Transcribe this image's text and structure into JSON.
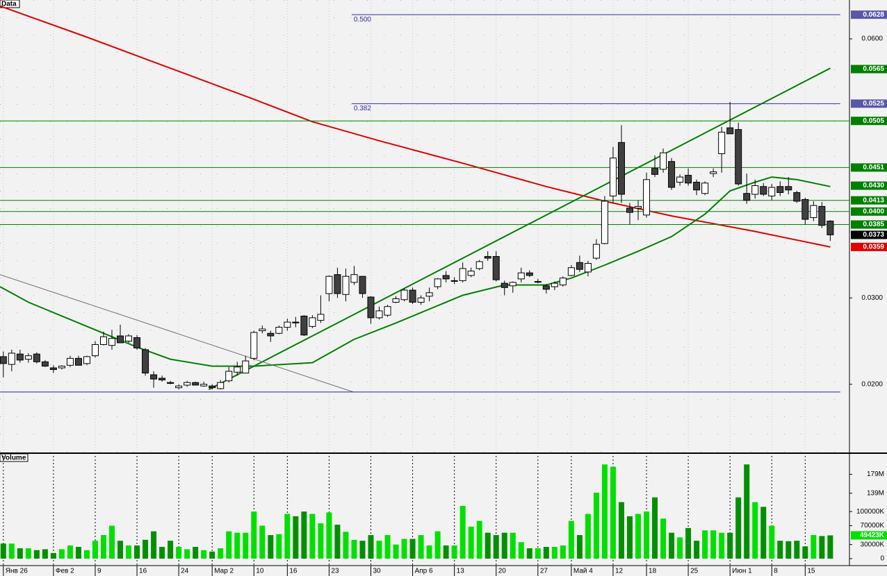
{
  "chart_data": {
    "type": "candlestick",
    "title": "Data",
    "categories": [
      "Янв 26",
      null,
      null,
      null,
      null,
      null,
      "Фев 2",
      null,
      null,
      null,
      null,
      "9",
      null,
      null,
      null,
      null,
      "16",
      null,
      null,
      null,
      null,
      "24",
      null,
      null,
      null,
      "Мар 2",
      null,
      null,
      null,
      null,
      "10",
      null,
      null,
      null,
      "16",
      null,
      null,
      null,
      null,
      "23",
      null,
      null,
      null,
      null,
      "30",
      null,
      null,
      null,
      null,
      "Апр 6",
      null,
      null,
      null,
      null,
      "13",
      null,
      null,
      null,
      null,
      "20",
      null,
      null,
      null,
      null,
      "27",
      null,
      null,
      null,
      "Май 4",
      null,
      null,
      null,
      null,
      "12",
      null,
      null,
      null,
      "18",
      null,
      null,
      null,
      null,
      "25",
      null,
      null,
      null,
      null,
      "Июн 1",
      null,
      null,
      null,
      null,
      "8",
      null,
      null,
      null,
      "15",
      null,
      null,
      null
    ],
    "ohlc": [
      [
        0.0232,
        0.0238,
        0.0208,
        0.0224
      ],
      [
        0.0223,
        0.024,
        0.0215,
        0.0236
      ],
      [
        0.0235,
        0.024,
        0.0225,
        0.0228
      ],
      [
        0.0229,
        0.0236,
        0.0225,
        0.0233
      ],
      [
        0.0235,
        0.0237,
        0.0224,
        0.0226
      ],
      [
        0.0226,
        0.0228,
        0.022,
        0.0221
      ],
      [
        0.0219,
        0.0222,
        0.0213,
        0.0217
      ],
      [
        0.0219,
        0.0222,
        0.0217,
        0.0221
      ],
      [
        0.0222,
        0.0233,
        0.022,
        0.023
      ],
      [
        0.023,
        0.0233,
        0.0222,
        0.0222
      ],
      [
        0.0224,
        0.0233,
        0.0222,
        0.0232
      ],
      [
        0.0233,
        0.025,
        0.0231,
        0.0246
      ],
      [
        0.0246,
        0.0261,
        0.0245,
        0.0255
      ],
      [
        0.0245,
        0.0263,
        0.024,
        0.0253
      ],
      [
        0.0256,
        0.0269,
        0.0248,
        0.0248
      ],
      [
        0.025,
        0.0258,
        0.0248,
        0.0256
      ],
      [
        0.0254,
        0.0257,
        0.024,
        0.0242
      ],
      [
        0.024,
        0.0242,
        0.021,
        0.0213
      ],
      [
        0.0211,
        0.0215,
        0.0196,
        0.0206
      ],
      [
        0.0207,
        0.021,
        0.0203,
        0.0205
      ],
      [
        0.0202,
        0.0204,
        0.02,
        0.0201
      ],
      [
        0.0196,
        0.02,
        0.0194,
        0.0198
      ],
      [
        0.0199,
        0.0204,
        0.0197,
        0.0202
      ],
      [
        0.0202,
        0.0203,
        0.0199,
        0.0199
      ],
      [
        0.0198,
        0.0203,
        0.0197,
        0.02
      ],
      [
        0.0198,
        0.02,
        0.0194,
        0.0196
      ],
      [
        0.0195,
        0.0205,
        0.0194,
        0.0202
      ],
      [
        0.0204,
        0.022,
        0.0202,
        0.0215
      ],
      [
        0.0214,
        0.0226,
        0.021,
        0.022
      ],
      [
        0.0213,
        0.0233,
        0.0213,
        0.0227
      ],
      [
        0.023,
        0.0262,
        0.0228,
        0.026
      ],
      [
        0.0262,
        0.0268,
        0.0259,
        0.0264
      ],
      [
        0.0259,
        0.0262,
        0.0249,
        0.0256
      ],
      [
        0.0259,
        0.0268,
        0.0258,
        0.0266
      ],
      [
        0.0266,
        0.0276,
        0.0262,
        0.0272
      ],
      [
        0.0272,
        0.0278,
        0.0266,
        0.0271
      ],
      [
        0.0279,
        0.028,
        0.0256,
        0.0257
      ],
      [
        0.0267,
        0.028,
        0.0265,
        0.0277
      ],
      [
        0.0274,
        0.0303,
        0.0271,
        0.0281
      ],
      [
        0.0305,
        0.0326,
        0.0296,
        0.0325
      ],
      [
        0.0327,
        0.0335,
        0.03,
        0.0305
      ],
      [
        0.0304,
        0.0334,
        0.0296,
        0.0325
      ],
      [
        0.0318,
        0.0337,
        0.0315,
        0.0327
      ],
      [
        0.0325,
        0.0325,
        0.03,
        0.0305
      ],
      [
        0.0301,
        0.0302,
        0.027,
        0.0277
      ],
      [
        0.0277,
        0.029,
        0.0275,
        0.0285
      ],
      [
        0.028,
        0.0292,
        0.0278,
        0.029
      ],
      [
        0.0295,
        0.0302,
        0.0294,
        0.0299
      ],
      [
        0.0298,
        0.0311,
        0.0296,
        0.0309
      ],
      [
        0.0309,
        0.0312,
        0.0293,
        0.0295
      ],
      [
        0.0295,
        0.0303,
        0.0292,
        0.03
      ],
      [
        0.0302,
        0.0312,
        0.0296,
        0.0306
      ],
      [
        0.0313,
        0.0323,
        0.031,
        0.0322
      ],
      [
        0.0326,
        0.0331,
        0.0318,
        0.0322
      ],
      [
        0.032,
        0.0324,
        0.0316,
        0.032
      ],
      [
        0.032,
        0.0341,
        0.0318,
        0.0334
      ],
      [
        0.0326,
        0.0335,
        0.0324,
        0.0331
      ],
      [
        0.0334,
        0.0344,
        0.0332,
        0.0342
      ],
      [
        0.0348,
        0.0354,
        0.0343,
        0.0346
      ],
      [
        0.0348,
        0.0354,
        0.0319,
        0.0321
      ],
      [
        0.0317,
        0.032,
        0.0303,
        0.0312
      ],
      [
        0.0314,
        0.0319,
        0.0306,
        0.0318
      ],
      [
        0.0322,
        0.0335,
        0.0318,
        0.0329
      ],
      [
        0.0329,
        0.0332,
        0.0324,
        0.0326
      ],
      [
        0.0319,
        0.0322,
        0.0317,
        0.0319
      ],
      [
        0.0314,
        0.0316,
        0.0305,
        0.031
      ],
      [
        0.0313,
        0.0319,
        0.0309,
        0.0317
      ],
      [
        0.0315,
        0.0325,
        0.0313,
        0.0323
      ],
      [
        0.0326,
        0.0338,
        0.0325,
        0.0335
      ],
      [
        0.0341,
        0.0349,
        0.033,
        0.0333
      ],
      [
        0.033,
        0.0343,
        0.0325,
        0.034
      ],
      [
        0.0346,
        0.0368,
        0.0344,
        0.0362
      ],
      [
        0.0363,
        0.0418,
        0.0362,
        0.0412
      ],
      [
        0.0418,
        0.0475,
        0.041,
        0.0462
      ],
      [
        0.048,
        0.05,
        0.041,
        0.042
      ],
      [
        0.0404,
        0.041,
        0.0385,
        0.0399
      ],
      [
        0.0404,
        0.0413,
        0.039,
        0.0406
      ],
      [
        0.0396,
        0.0445,
        0.0393,
        0.0437
      ],
      [
        0.045,
        0.0465,
        0.044,
        0.0443
      ],
      [
        0.0449,
        0.0473,
        0.0445,
        0.0468
      ],
      [
        0.0458,
        0.0462,
        0.0425,
        0.0428
      ],
      [
        0.0434,
        0.0443,
        0.043,
        0.044
      ],
      [
        0.0442,
        0.045,
        0.043,
        0.0433
      ],
      [
        0.0434,
        0.0437,
        0.0419,
        0.0425
      ],
      [
        0.0421,
        0.0435,
        0.0419,
        0.0433
      ],
      [
        0.0444,
        0.045,
        0.044,
        0.0446
      ],
      [
        0.0467,
        0.0498,
        0.0445,
        0.0492
      ],
      [
        0.0497,
        0.0527,
        0.049,
        0.049
      ],
      [
        0.0495,
        0.0503,
        0.043,
        0.0432
      ],
      [
        0.0421,
        0.0444,
        0.0409,
        0.0413
      ],
      [
        0.042,
        0.0437,
        0.0415,
        0.043
      ],
      [
        0.0429,
        0.0433,
        0.0418,
        0.042
      ],
      [
        0.0418,
        0.0432,
        0.0413,
        0.0428
      ],
      [
        0.0429,
        0.0435,
        0.0418,
        0.0422
      ],
      [
        0.0429,
        0.044,
        0.042,
        0.0425
      ],
      [
        0.0422,
        0.0424,
        0.041,
        0.0412
      ],
      [
        0.0414,
        0.0416,
        0.0385,
        0.0391
      ],
      [
        0.0393,
        0.0412,
        0.0389,
        0.0407
      ],
      [
        0.0406,
        0.0411,
        0.0381,
        0.0384
      ],
      [
        0.0389,
        0.039,
        0.0366,
        0.0373
      ]
    ],
    "up_color": "#ffffff",
    "down_color": "#404040",
    "xlim": [
      -0.4,
      101.3
    ],
    "ylim": [
      0.0121,
      0.0645
    ],
    "yticks": [
      {
        "value": 0.02,
        "label": "0.0200"
      },
      {
        "value": 0.03,
        "label": "0.0300"
      },
      {
        "value": 0.06,
        "label": "0.0600"
      }
    ],
    "lines": [
      {
        "color": "#e00000",
        "x": [
          -0.4,
          10,
          20,
          30,
          37,
          45,
          55,
          65,
          72,
          80,
          90,
          99
        ],
        "values": [
          0.0638,
          0.0602,
          0.0566,
          0.053,
          0.0504,
          0.0482,
          0.0456,
          0.0429,
          0.0412,
          0.0395,
          0.0377,
          0.0359
        ]
      },
      {
        "color": "#008000",
        "x": [
          -0.4,
          3,
          10,
          16,
          20,
          25,
          30,
          37,
          42,
          47,
          55,
          60,
          65,
          68,
          72,
          76,
          80,
          84,
          87,
          90,
          92,
          95,
          99
        ],
        "values": [
          0.0313,
          0.0295,
          0.0267,
          0.0243,
          0.0229,
          0.0221,
          0.0221,
          0.0225,
          0.0252,
          0.0271,
          0.0303,
          0.0315,
          0.0315,
          0.0323,
          0.0338,
          0.0354,
          0.0371,
          0.0397,
          0.0424,
          0.0434,
          0.044,
          0.0437,
          0.0429
        ]
      },
      {
        "color": "#008000",
        "x": [
          24.6,
          99
        ],
        "values": [
          0.0194,
          0.0566
        ]
      },
      {
        "color": "#707070",
        "x": [
          -0.4,
          41.9
        ],
        "values": [
          0.0327,
          0.0191
        ]
      },
      {
        "color": "#2020a0",
        "x": [
          -0.4,
          100.2
        ],
        "values": [
          0.0191,
          0.0191
        ]
      },
      {
        "color": "#008000",
        "x": [
          -0.4,
          101.3
        ],
        "values": [
          0.0505,
          0.0505
        ]
      },
      {
        "color": "#008000",
        "x": [
          -0.4,
          101.3
        ],
        "values": [
          0.0451,
          0.0451
        ]
      },
      {
        "color": "#008000",
        "x": [
          -0.4,
          101.3
        ],
        "values": [
          0.0413,
          0.0413
        ]
      },
      {
        "color": "#008000",
        "x": [
          -0.4,
          101.3
        ],
        "values": [
          0.04,
          0.04
        ]
      },
      {
        "color": "#008000",
        "x": [
          -0.4,
          101.3
        ],
        "values": [
          0.0385,
          0.0385
        ]
      }
    ],
    "fib_levels": [
      {
        "value": 0.0628,
        "label": "0.500",
        "x": [
          41.7,
          100.2
        ]
      },
      {
        "value": 0.0525,
        "label": "0.382",
        "x": [
          41.7,
          100.2
        ]
      }
    ],
    "fib_color": "#3030a0",
    "price_labels": [
      {
        "value": 0.0628,
        "label": "0.0628",
        "color": "#5858a8"
      },
      {
        "value": 0.0565,
        "label": "0.0565",
        "color": "#008000"
      },
      {
        "value": 0.0525,
        "label": "0.0525",
        "color": "#5858a8"
      },
      {
        "value": 0.0505,
        "label": "0.0505",
        "color": "#008000"
      },
      {
        "value": 0.0451,
        "label": "0.0451",
        "color": "#008000"
      },
      {
        "value": 0.043,
        "label": "0.0430",
        "color": "#008000"
      },
      {
        "value": 0.0413,
        "label": "0.0413",
        "color": "#008000"
      },
      {
        "value": 0.04,
        "label": "0.0400",
        "color": "#008000"
      },
      {
        "value": 0.0385,
        "label": "0.0385",
        "color": "#008000"
      },
      {
        "value": 0.0373,
        "label": "0.0373",
        "color": "#000000"
      },
      {
        "value": 0.0359,
        "label": "0.0359",
        "color": "#e00000"
      }
    ],
    "volume": {
      "title": "Volume",
      "up_color": "#00e000",
      "down_color": "#009000",
      "values": [
        32000000,
        32000000,
        22000000,
        22000000,
        18000000,
        20000000,
        12000000,
        20000000,
        28000000,
        25000000,
        18000000,
        38000000,
        50000000,
        70000000,
        38000000,
        28000000,
        28000000,
        40000000,
        58000000,
        25000000,
        38000000,
        25000000,
        20000000,
        25000000,
        18000000,
        15000000,
        22000000,
        58000000,
        55000000,
        55000000,
        100000000,
        70000000,
        50000000,
        52000000,
        95000000,
        90000000,
        100000000,
        95000000,
        75000000,
        98000000,
        72000000,
        57000000,
        40000000,
        38000000,
        50000000,
        38000000,
        50000000,
        30000000,
        42000000,
        42000000,
        50000000,
        28000000,
        58000000,
        28000000,
        28000000,
        112000000,
        68000000,
        80000000,
        55000000,
        50000000,
        55000000,
        55000000,
        35000000,
        22000000,
        22000000,
        25000000,
        25000000,
        28000000,
        80000000,
        50000000,
        95000000,
        140000000,
        200000000,
        195000000,
        120000000,
        90000000,
        95000000,
        100000000,
        130000000,
        85000000,
        55000000,
        45000000,
        65000000,
        38000000,
        60000000,
        60000000,
        55000000,
        55000000,
        130000000,
        200000000,
        120000000,
        110000000,
        70000000,
        38000000,
        37000000,
        38000000,
        26000000,
        50000000,
        48000000,
        49423000
      ],
      "last_value_label": "49423K",
      "ylim": [
        0,
        218000000
      ],
      "yticks": [
        0,
        {
          "value": 30000000,
          "label": "30000K"
        },
        {
          "value": 70000000,
          "label": "70000K"
        },
        {
          "value": 100000000,
          "label": "100000K"
        },
        {
          "value": 139000000,
          "label": "139M"
        },
        {
          "value": 179000000,
          "label": "179M"
        }
      ]
    }
  }
}
